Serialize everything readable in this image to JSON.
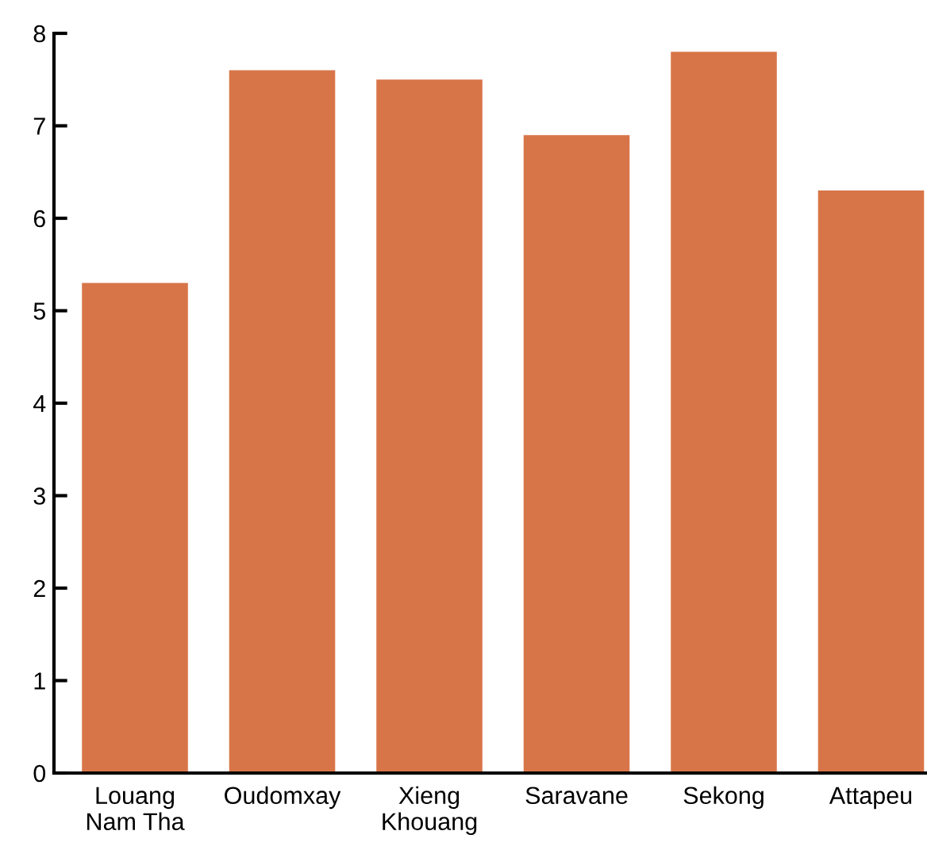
{
  "chart_data": {
    "type": "bar",
    "categories": [
      "Louang\nNam Tha",
      "Oudomxay",
      "Xieng\nKhouang",
      "Saravane",
      "Sekong",
      "Attapeu"
    ],
    "values": [
      5.3,
      7.6,
      7.5,
      6.9,
      7.8,
      6.3
    ],
    "color": "#d87548",
    "ylim": [
      0,
      8
    ],
    "yticks": [
      0,
      1,
      2,
      3,
      4,
      5,
      6,
      7,
      8
    ],
    "grid": false
  }
}
